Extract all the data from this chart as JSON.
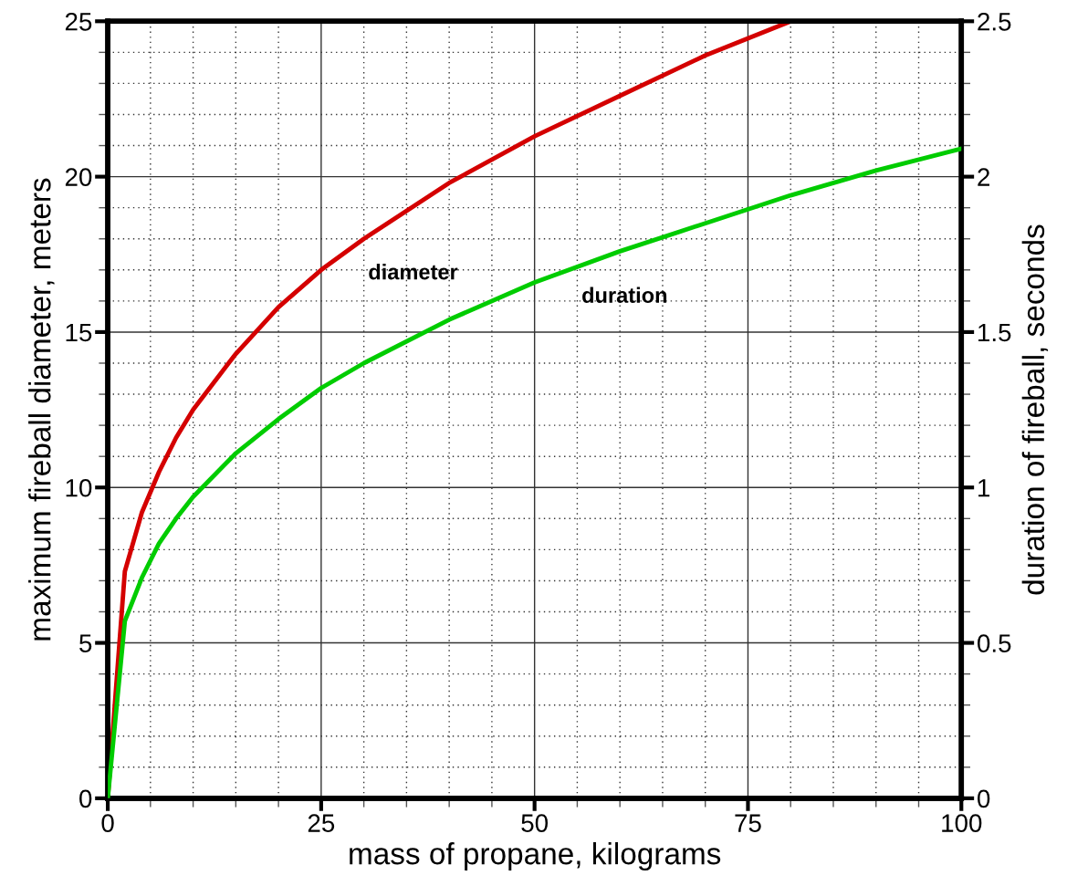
{
  "chart_data": {
    "type": "line",
    "xlabel": "mass of propane, kilograms",
    "ylabel": "maximum fireball diameter, meters",
    "y2label": "duration of fireball, seconds",
    "xlim": [
      0,
      100
    ],
    "xticks": [
      0,
      25,
      50,
      75,
      100
    ],
    "ylim": [
      0,
      25
    ],
    "yticks": [
      0,
      5,
      10,
      15,
      20,
      25
    ],
    "y2lim": [
      0,
      2.5
    ],
    "y2ticks": [
      0,
      0.5,
      1,
      1.5,
      2,
      2.5
    ],
    "grid": true,
    "line_style": "solid",
    "series": [
      {
        "name": "diameter",
        "color": "#d40000",
        "x": [
          0,
          2,
          4,
          6,
          8,
          10,
          15,
          20,
          25,
          30,
          40,
          50,
          60,
          70,
          80
        ],
        "values": [
          0,
          7.3,
          9.2,
          10.5,
          11.6,
          12.5,
          14.3,
          15.8,
          17.0,
          18.0,
          19.8,
          21.3,
          22.6,
          23.9,
          25.0
        ]
      },
      {
        "name": "duration",
        "color": "#00cc00",
        "axis": "y2",
        "x": [
          0,
          2,
          4,
          6,
          8,
          10,
          15,
          20,
          25,
          30,
          40,
          50,
          60,
          70,
          80,
          90,
          100
        ],
        "values": [
          0,
          0.57,
          0.71,
          0.82,
          0.9,
          0.97,
          1.11,
          1.22,
          1.32,
          1.4,
          1.54,
          1.66,
          1.76,
          1.85,
          1.94,
          2.02,
          2.09
        ]
      }
    ]
  }
}
